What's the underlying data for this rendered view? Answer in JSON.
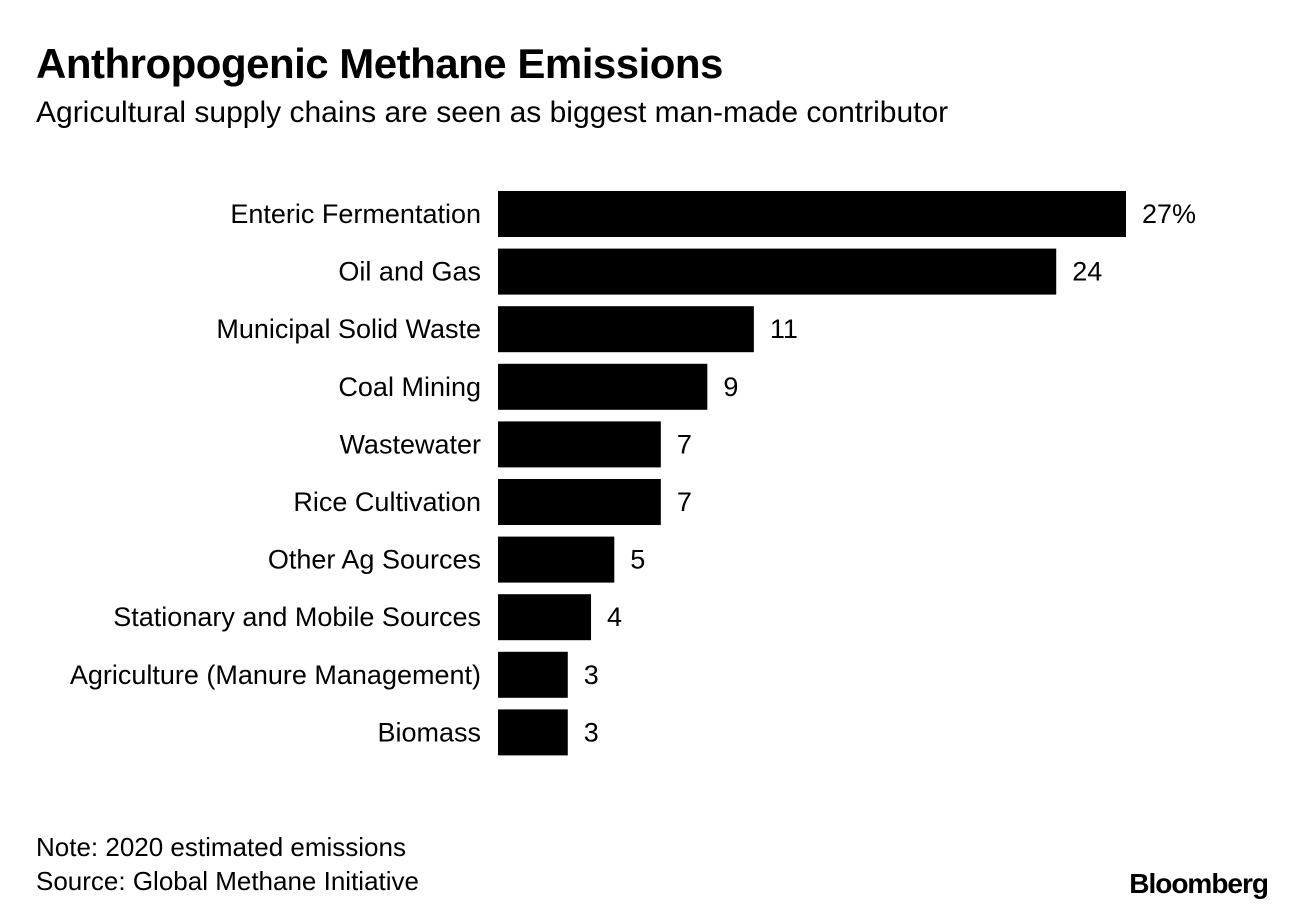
{
  "chart_data": {
    "type": "bar",
    "orientation": "horizontal",
    "title": "Anthropogenic Methane Emissions",
    "subtitle": "Agricultural supply chains are seen as biggest man-made contributor",
    "categories": [
      "Enteric Fermentation",
      "Oil and Gas",
      "Municipal Solid Waste",
      "Coal Mining",
      "Wastewater",
      "Rice Cultivation",
      "Other Ag Sources",
      "Stationary and Mobile Sources",
      "Agriculture (Manure Management)",
      "Biomass"
    ],
    "values": [
      27,
      24,
      11,
      9,
      7,
      7,
      5,
      4,
      3,
      3
    ],
    "value_labels": [
      "27%",
      "24",
      "11",
      "9",
      "7",
      "7",
      "5",
      "4",
      "3",
      "3"
    ],
    "bar_color": "#000000",
    "xlim": [
      0,
      27
    ],
    "grid": false,
    "legend": "none"
  },
  "footer": {
    "note": "Note: 2020 estimated emissions",
    "source": "Source: Global Methane Initiative",
    "logo": "Bloomberg"
  }
}
